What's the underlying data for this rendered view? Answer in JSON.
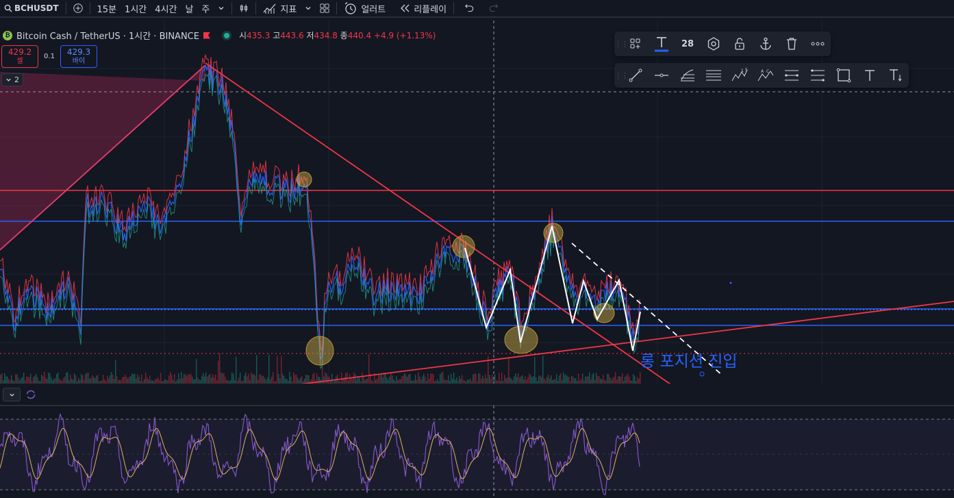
{
  "toolbar": {
    "symbol": "BCHUSDT",
    "timeframes": [
      "15분",
      "1시간",
      "4시간",
      "날",
      "주"
    ],
    "active_timeframe": "1시간",
    "indicators_label": "지표",
    "alert_label": "얼러트",
    "replay_label": "리플레이",
    "icons": [
      "search-icon",
      "add-symbol-icon",
      "chevron-down-icon",
      "candle-type-icon",
      "indicators-icon",
      "layout-grid-icon",
      "alarm-icon",
      "replay-icon",
      "undo-icon",
      "redo-icon"
    ]
  },
  "legend": {
    "title": "Bitcoin Cash / TetherUS · 1시간 · BINANCE",
    "open_label": "시",
    "open": "435.3",
    "high_label": "고",
    "high": "443.6",
    "low_label": "저",
    "low": "434.8",
    "close_label": "종",
    "close": "440.4",
    "change": "+4.9 (+1.13%)"
  },
  "trade": {
    "sell_price": "429.2",
    "sell_label": "셀",
    "spread": "0.1",
    "buy_price": "429.3",
    "buy_label": "바이"
  },
  "collapse": {
    "count": "2"
  },
  "drawing_toolbar": {
    "font_size": "28",
    "row1_icons": [
      "templates-icon",
      "text-style-icon",
      "font-size",
      "settings-icon",
      "lock-icon",
      "anchor-icon",
      "delete-icon",
      "more-icon"
    ],
    "row2_icons": [
      "trend-line-icon",
      "horizontal-ray-icon",
      "fib-icon",
      "parallel-channel-icon",
      "wave-15-icon",
      "wave-abc-icon",
      "range-icon",
      "range2-icon",
      "rectangle-icon",
      "text-icon",
      "text-anchor-icon"
    ]
  },
  "annotation": "롱 포지션 진입",
  "colors": {
    "background": "#131722",
    "red": "#f23645",
    "blue": "#2962ff",
    "green": "#22ab94",
    "purple": "#7e57c2",
    "yellow": "#d4b24a"
  }
}
